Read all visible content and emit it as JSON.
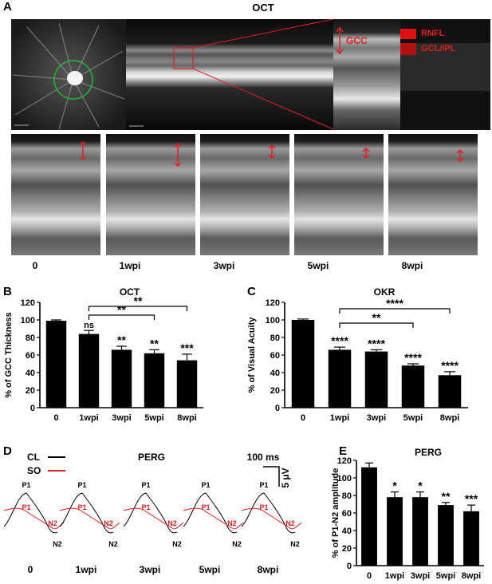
{
  "panels": {
    "A": "A",
    "B": "B",
    "C": "C",
    "D": "D",
    "E": "E"
  },
  "oct": {
    "title": "OCT",
    "legend": [
      "RNFL",
      "GCL/IPL"
    ],
    "gcc_label": "GCC",
    "labels": [
      "0",
      "1wpi",
      "3wpi",
      "5wpi",
      "8wpi"
    ],
    "colors": {
      "legend_rnfl": "#e01010",
      "legend_gcl": "#b01010",
      "arrow": "#e02020",
      "circle": "#22bb33"
    }
  },
  "perg": {
    "title": "PERG",
    "legend": [
      {
        "name": "CL",
        "color": "#000000"
      },
      {
        "name": "SO",
        "color": "#e02020"
      }
    ],
    "scale_time": "100 ms",
    "scale_volt": "5 μV",
    "labels": [
      "0",
      "1wpi",
      "3wpi",
      "5wpi",
      "8wpi"
    ],
    "marker_p1": "P1",
    "marker_n2": "N2"
  },
  "chart_data": [
    {
      "type": "bar",
      "title": "OCT",
      "ylabel": "% of GCC Thickness",
      "categories": [
        "0",
        "1wpi",
        "3wpi",
        "5wpi",
        "8wpi"
      ],
      "values": [
        99,
        84,
        66,
        62,
        54
      ],
      "errors": [
        1,
        4,
        4,
        4,
        7
      ],
      "ylim": [
        0,
        120
      ],
      "yticks": [
        "0",
        "20",
        "40",
        "60",
        "80",
        "100",
        "120"
      ],
      "significance": [
        "",
        "ns",
        "**",
        "**",
        "***"
      ],
      "brackets": [
        {
          "from": "1wpi",
          "to": "5wpi",
          "label": "**"
        },
        {
          "from": "1wpi",
          "to": "8wpi",
          "label": "**"
        }
      ]
    },
    {
      "type": "bar",
      "title": "OKR",
      "ylabel": "% of Visual Acuity",
      "categories": [
        "0",
        "1wpi",
        "3wpi",
        "5wpi",
        "8wpi"
      ],
      "values": [
        100,
        66,
        64,
        48,
        37
      ],
      "errors": [
        1,
        3,
        2,
        2,
        4
      ],
      "ylim": [
        0,
        120
      ],
      "yticks": [
        "0",
        "20",
        "40",
        "60",
        "80",
        "100",
        "120"
      ],
      "significance": [
        "",
        "****",
        "****",
        "****",
        "****"
      ],
      "brackets": [
        {
          "from": "1wpi",
          "to": "5wpi",
          "label": "**"
        },
        {
          "from": "1wpi",
          "to": "8wpi",
          "label": "****"
        }
      ]
    },
    {
      "type": "bar",
      "title": "PERG",
      "ylabel": "% of P1-N2 amplitude",
      "categories": [
        "0",
        "1wpi",
        "3wpi",
        "5wpi",
        "8wpi"
      ],
      "values": [
        112,
        78,
        78,
        69,
        62
      ],
      "errors": [
        5,
        6,
        6,
        3,
        7
      ],
      "ylim": [
        0,
        120
      ],
      "yticks": [
        "0",
        "20",
        "40",
        "60",
        "80",
        "100",
        "120"
      ],
      "significance": [
        "",
        "*",
        "*",
        "**",
        "***"
      ],
      "brackets": []
    }
  ]
}
